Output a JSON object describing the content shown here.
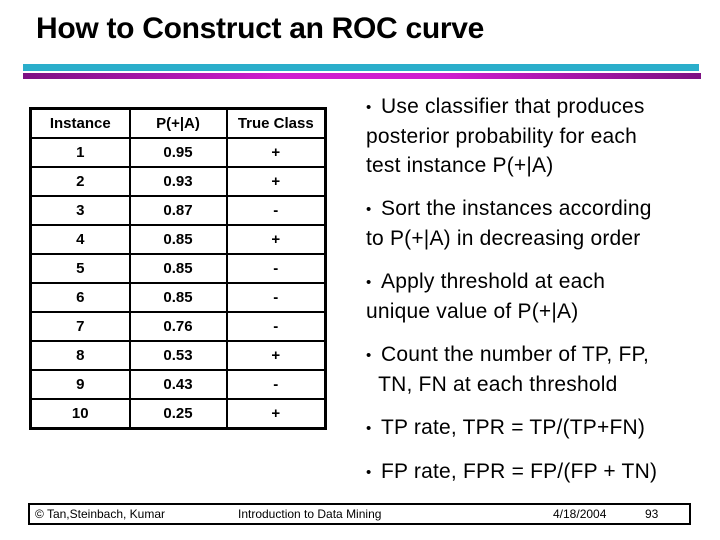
{
  "title": "How to Construct an ROC curve",
  "bullet_char": "•",
  "colors": {
    "title_text": "#000000",
    "rule_cyan": "#2aaecb",
    "rule_magenta_mid": "#cf1ccf",
    "rule_magenta_edge": "#7d1283",
    "table_border": "#000000",
    "background": "#ffffff"
  },
  "table": {
    "headers": [
      "Instance",
      "P(+|A)",
      "True Class"
    ],
    "rows": [
      [
        "1",
        "0.95",
        "+"
      ],
      [
        "2",
        "0.93",
        "+"
      ],
      [
        "3",
        "0.87",
        "-"
      ],
      [
        "4",
        "0.85",
        "+"
      ],
      [
        "5",
        "0.85",
        "-"
      ],
      [
        "6",
        "0.85",
        "-"
      ],
      [
        "7",
        "0.76",
        "-"
      ],
      [
        "8",
        "0.53",
        "+"
      ],
      [
        "9",
        "0.43",
        "-"
      ],
      [
        "10",
        "0.25",
        "+"
      ]
    ]
  },
  "bullets": [
    {
      "lines": [
        "Use classifier that produces",
        "posterior probability for each",
        "test instance P(+|A)"
      ]
    },
    {
      "lines": [
        "Sort the instances according",
        "to P(+|A) in decreasing order"
      ]
    },
    {
      "lines": [
        "Apply threshold at each",
        "unique value of P(+|A)"
      ]
    },
    {
      "lines": [
        "Count the number of TP, FP,",
        "  TN, FN at each threshold"
      ]
    },
    {
      "lines": [
        "TP rate, TPR = TP/(TP+FN)"
      ]
    },
    {
      "lines": [
        "FP rate, FPR = FP/(FP + TN)"
      ]
    }
  ],
  "footer": {
    "copyright": "© Tan,Steinbach, Kumar",
    "center": "Introduction to Data Mining",
    "date": "4/18/2004",
    "page": "93"
  }
}
